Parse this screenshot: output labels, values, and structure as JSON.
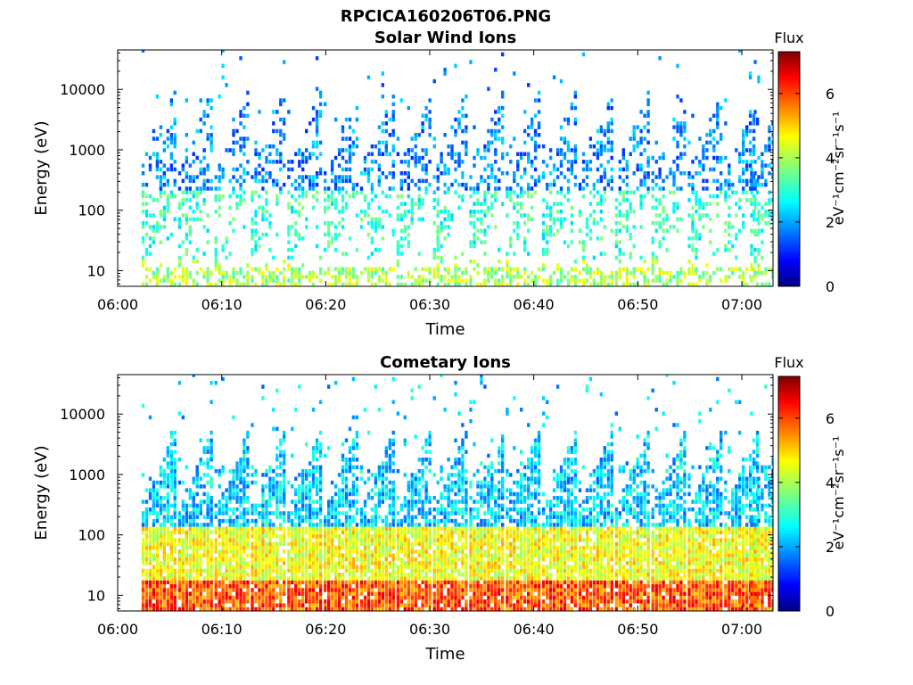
{
  "figure_title": "RPCICA160206T06.PNG",
  "chart_data": [
    {
      "type": "heatmap",
      "title": "Solar Wind Ions",
      "xlabel": "Time",
      "ylabel": "Energy (eV)",
      "x_ticks": [
        "06:00",
        "06:10",
        "06:20",
        "06:30",
        "06:40",
        "06:50",
        "07:00"
      ],
      "x_range_minutes": [
        0,
        63
      ],
      "y_scale": "log",
      "y_ticks": [
        "10",
        "100",
        "1000",
        "10000"
      ],
      "y_range": [
        5.5,
        45000
      ],
      "colorbar": {
        "title": "Flux",
        "unit": "eV⁻¹cm⁻²sr⁻¹s⁻¹",
        "ticks": [
          "0",
          "2",
          "4",
          "6"
        ],
        "range": [
          0,
          7.3
        ],
        "colormap": "jet"
      },
      "sweep_times_minutes": [
        3.5,
        7.0,
        10.5,
        14.0,
        17.5,
        21.0,
        24.5,
        28.0,
        31.5,
        35.0,
        38.5,
        42.0,
        45.5,
        49.0,
        52.5,
        56.0,
        59.5,
        62.0
      ],
      "typical_flux_low_energy": 3.2,
      "typical_flux_mid_energy": 2.4,
      "typical_flux_high_energy": 1.2
    },
    {
      "type": "heatmap",
      "title": "Cometary Ions",
      "xlabel": "Time",
      "ylabel": "Energy (eV)",
      "x_ticks": [
        "06:00",
        "06:10",
        "06:20",
        "06:30",
        "06:40",
        "06:50",
        "07:00"
      ],
      "x_range_minutes": [
        0,
        63
      ],
      "y_scale": "log",
      "y_ticks": [
        "10",
        "100",
        "1000",
        "10000"
      ],
      "y_range": [
        5.5,
        45000
      ],
      "colorbar": {
        "title": "Flux",
        "unit": "eV⁻¹cm⁻²sr⁻¹s⁻¹",
        "ticks": [
          "0",
          "2",
          "4",
          "6"
        ],
        "range": [
          0,
          7.3
        ],
        "colormap": "jet"
      },
      "sweep_times_minutes": [
        3.5,
        7.0,
        10.5,
        14.0,
        17.5,
        21.0,
        24.5,
        28.0,
        31.5,
        35.0,
        38.5,
        42.0,
        45.5,
        49.0,
        52.5,
        56.0,
        59.5,
        62.0
      ],
      "typical_flux_low_energy": 5.0,
      "typical_flux_mid_energy": 3.8,
      "typical_flux_high_energy": 1.6
    }
  ]
}
